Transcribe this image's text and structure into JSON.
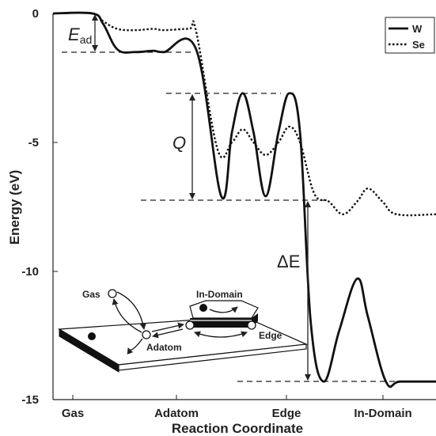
{
  "chart_data": {
    "type": "line",
    "xlabel": "Reaction Coordinate",
    "ylabel": "Energy (eV)",
    "categories": [
      "Gas",
      "Adatom",
      "Edge",
      "In-Domain"
    ],
    "y_ticks": [
      "0",
      "-5",
      "-10",
      "-15"
    ],
    "ylim": [
      -15,
      0
    ],
    "legend": {
      "position": "top-right",
      "entries": [
        "W",
        "Se"
      ]
    },
    "series": [
      {
        "name": "W",
        "style": "solid",
        "x": [
          0,
          0.55,
          0.7,
          0.9,
          1.15,
          1.4,
          1.55,
          2.0,
          2.35,
          2.5,
          2.65,
          2.8,
          2.97,
          3.15,
          3.3,
          3.45,
          3.6,
          3.78,
          4.0,
          4.25,
          4.4,
          4.65,
          4.85,
          5.35
        ],
        "y": [
          0,
          0,
          -0.4,
          -1.4,
          -1.5,
          -1.45,
          -1.5,
          -1.4,
          -7.1,
          -4.6,
          -3.1,
          -4.6,
          -7.1,
          -4.6,
          -3.1,
          -4.6,
          -12.0,
          -14.3,
          -12.3,
          -10.3,
          -11.8,
          -14.3,
          -14.3,
          -14.3
        ]
      },
      {
        "name": "Se",
        "style": "dotted",
        "x": [
          0,
          0.55,
          0.7,
          0.9,
          1.15,
          1.4,
          1.55,
          1.9,
          2.0,
          2.3,
          2.5,
          2.65,
          2.8,
          2.97,
          3.15,
          3.3,
          3.45,
          3.65,
          3.85,
          4.05,
          4.25,
          4.4,
          4.6,
          4.8,
          5.35
        ],
        "y": [
          0,
          0,
          -0.3,
          -0.6,
          -0.65,
          -0.6,
          -0.65,
          -0.6,
          -0.7,
          -5.3,
          -5.0,
          -4.5,
          -5.0,
          -5.5,
          -5.0,
          -4.4,
          -5.0,
          -7.0,
          -7.3,
          -7.8,
          -7.3,
          -6.8,
          -7.3,
          -7.8,
          -7.8
        ]
      }
    ],
    "annotations": {
      "ead": {
        "label": "E",
        "subscript": "ad",
        "arrow_from": 0,
        "arrow_to": -1.5
      },
      "q": {
        "label": "Q",
        "arrow_from": -3.1,
        "arrow_to": -7.1
      },
      "delta_e": {
        "label": "ΔE",
        "arrow_from": -7.1,
        "arrow_to": -14.3
      },
      "reference_lines": [
        -1.5,
        -3.1,
        -7.1,
        -14.3
      ]
    },
    "inset": {
      "labels": {
        "gas": "Gas",
        "adatom": "Adatom",
        "in_domain": "In-Domain",
        "edge": "Edge"
      }
    }
  },
  "colors": {
    "line": "#111111",
    "axis": "#222222",
    "dash": "#222222",
    "inset_fill": "#ffffff",
    "inset_edge": "#111111"
  }
}
